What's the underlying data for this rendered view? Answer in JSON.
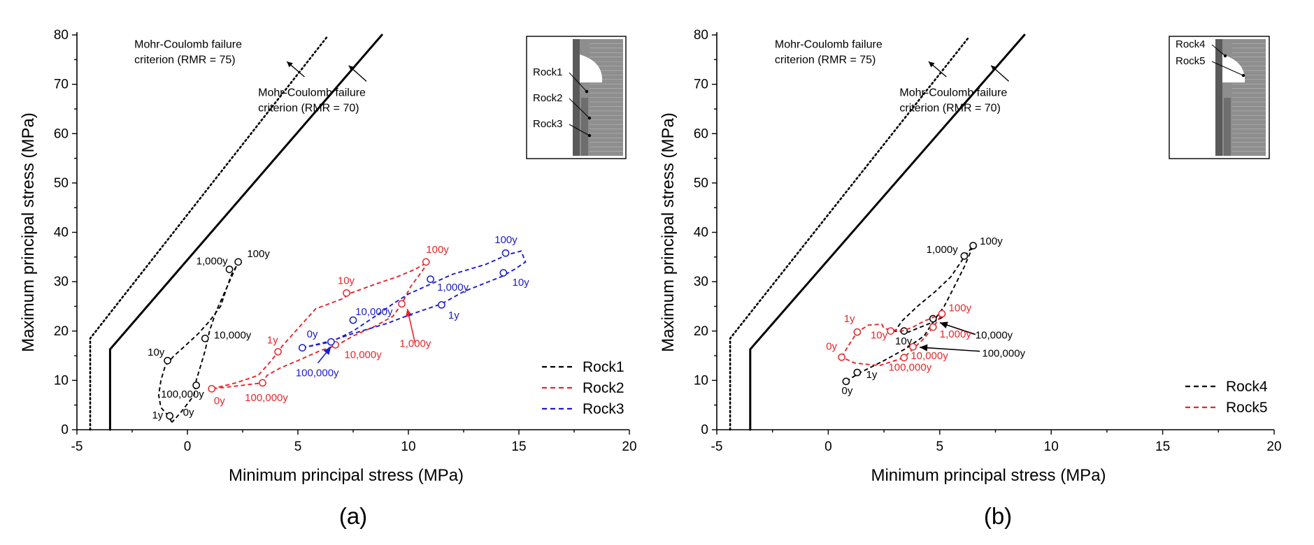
{
  "colors": {
    "Rock1": "#000000",
    "Rock2": "#e8262a",
    "Rock3": "#1c1ccf",
    "Rock4": "#000000",
    "Rock5": "#e8262a"
  },
  "chart_data": [
    {
      "type": "line",
      "panel": "(a)",
      "xlabel": "Minimum principal stress (MPa)",
      "ylabel": "Maximum principal stress (MPa)",
      "xlim": [
        -5,
        20
      ],
      "ylim": [
        0,
        80
      ],
      "xticks": [
        "-5",
        "0",
        "5",
        "10",
        "15",
        "20"
      ],
      "yticks": [
        "0",
        "10",
        "20",
        "30",
        "40",
        "50",
        "60",
        "70",
        "80"
      ],
      "legend_position": "bottom-right",
      "failure_criteria": [
        {
          "label": "Mohr-Coulomb  failure criterion (RMR = 75)",
          "line1": "Mohr-Coulomb  failure",
          "line2": "criterion (RMR = 75)",
          "style": "dotted",
          "points": [
            [
              -4.4,
              0
            ],
            [
              -4.4,
              18.5
            ],
            [
              6.3,
              79.5
            ]
          ]
        },
        {
          "label": "Mohr-Coulomb  failure criterion (RMR = 70)",
          "line1": "Mohr-Coulomb  failure",
          "line2": "criterion (RMR = 70)",
          "style": "solid",
          "points": [
            [
              -3.5,
              0
            ],
            [
              -3.5,
              16.3
            ],
            [
              8.8,
              80
            ]
          ]
        }
      ],
      "series": [
        {
          "name": "Rock1",
          "color": "#000000",
          "path": [
            [
              -0.7,
              1.5
            ],
            [
              -0.9,
              3
            ],
            [
              -1.2,
              4.5
            ],
            [
              -1.3,
              7
            ],
            [
              -1.2,
              10
            ],
            [
              -1.0,
              13
            ],
            [
              -0.6,
              15
            ],
            [
              -0.1,
              17
            ],
            [
              0.5,
              19.5
            ],
            [
              1.0,
              22
            ],
            [
              1.5,
              25
            ],
            [
              1.8,
              29
            ],
            [
              2.0,
              31.5
            ],
            [
              2.2,
              33
            ],
            [
              2.3,
              34
            ],
            [
              2.1,
              32
            ],
            [
              1.7,
              28
            ],
            [
              1.3,
              24
            ],
            [
              1.0,
              20
            ],
            [
              0.8,
              16
            ],
            [
              0.6,
              13
            ],
            [
              0.4,
              10
            ],
            [
              0.3,
              7
            ],
            [
              -0.3,
              3.5
            ],
            [
              -0.7,
              1.5
            ]
          ],
          "markers": [
            [
              -0.8,
              2.8
            ],
            [
              -0.9,
              14
            ],
            [
              0.4,
              9
            ],
            [
              0.8,
              18.5
            ],
            [
              1.9,
              32.5
            ],
            [
              2.3,
              34
            ]
          ],
          "labels": [
            {
              "text": "0y",
              "x": -0.2,
              "y": 2.8
            },
            {
              "text": "1y",
              "x": -1.6,
              "y": 2.3
            },
            {
              "text": "10y",
              "x": -1.8,
              "y": 15
            },
            {
              "text": "100,000y",
              "x": -1.2,
              "y": 6.5
            },
            {
              "text": "10,000y",
              "x": 1.2,
              "y": 18.5
            },
            {
              "text": "1,000y",
              "x": 0.4,
              "y": 33.5
            },
            {
              "text": "100y",
              "x": 2.7,
              "y": 35
            }
          ]
        },
        {
          "name": "Rock2",
          "color": "#e8262a",
          "path": [
            [
              1.1,
              8.3
            ],
            [
              2.2,
              9.5
            ],
            [
              3.2,
              11
            ],
            [
              3.8,
              14
            ],
            [
              4.3,
              17
            ],
            [
              4.8,
              19.5
            ],
            [
              5.3,
              22
            ],
            [
              5.8,
              24.5
            ],
            [
              7.0,
              26.5
            ],
            [
              7.4,
              27.7
            ],
            [
              8.5,
              29.5
            ],
            [
              9.5,
              31
            ],
            [
              10.3,
              32.5
            ],
            [
              10.9,
              34
            ],
            [
              10.6,
              32
            ],
            [
              10.1,
              29
            ],
            [
              9.7,
              25.5
            ],
            [
              9.3,
              23
            ],
            [
              8.5,
              21
            ],
            [
              7.5,
              19
            ],
            [
              6.8,
              17.2
            ],
            [
              6.0,
              16
            ],
            [
              5.0,
              14
            ],
            [
              4.2,
              12.5
            ],
            [
              3.6,
              11
            ],
            [
              3.4,
              9.5
            ],
            [
              2.5,
              9
            ],
            [
              1.1,
              8.3
            ]
          ],
          "markers": [
            [
              1.1,
              8.3
            ],
            [
              3.4,
              9.5
            ],
            [
              4.1,
              15.8
            ],
            [
              6.7,
              17.2
            ],
            [
              7.2,
              27.7
            ],
            [
              9.7,
              25.5
            ],
            [
              10.8,
              34
            ]
          ],
          "labels": [
            {
              "text": "0y",
              "x": 1.2,
              "y": 5.2
            },
            {
              "text": "100,000y",
              "x": 2.6,
              "y": 5.8
            },
            {
              "text": "1y",
              "x": 3.6,
              "y": 17.5
            },
            {
              "text": "10,000y",
              "x": 7.1,
              "y": 14.5
            },
            {
              "text": "10y",
              "x": 6.8,
              "y": 29.5
            },
            {
              "text": "1,000y",
              "x": 9.6,
              "y": 16.8
            },
            {
              "text": "100y",
              "x": 10.8,
              "y": 35.8
            }
          ],
          "arrow": {
            "from": [
              10.3,
              17.6
            ],
            "to": [
              9.95,
              24.5
            ]
          }
        },
        {
          "name": "Rock3",
          "color": "#1c1ccf",
          "path": [
            [
              5.2,
              16.6
            ],
            [
              6.5,
              17.8
            ],
            [
              7.5,
              20
            ],
            [
              8.5,
              23
            ],
            [
              9.3,
              25.5
            ],
            [
              10,
              27.5
            ],
            [
              11,
              29.5
            ],
            [
              12.0,
              31.5
            ],
            [
              13.5,
              33.5
            ],
            [
              14.5,
              35.5
            ],
            [
              15.1,
              36.2
            ],
            [
              15.3,
              34
            ],
            [
              14.8,
              32.5
            ],
            [
              14.2,
              31
            ],
            [
              12.5,
              28
            ],
            [
              11.5,
              25.5
            ],
            [
              10.2,
              23.5
            ],
            [
              9.0,
              21.5
            ],
            [
              7.5,
              19.5
            ],
            [
              6.5,
              18
            ],
            [
              5.2,
              16.6
            ]
          ],
          "markers": [
            [
              5.2,
              16.6
            ],
            [
              6.5,
              17.8
            ],
            [
              7.5,
              22.2
            ],
            [
              11.0,
              30.5
            ],
            [
              11.5,
              25.3
            ],
            [
              14.3,
              31.8
            ],
            [
              14.4,
              35.8
            ]
          ],
          "labels": [
            {
              "text": "0y",
              "x": 5.4,
              "y": 18.7
            },
            {
              "text": "100,000y",
              "x": 4.9,
              "y": 10.8
            },
            {
              "text": "10,000y",
              "x": 7.6,
              "y": 23.2
            },
            {
              "text": "1,000y",
              "x": 11.3,
              "y": 28.2
            },
            {
              "text": "1y",
              "x": 11.8,
              "y": 22.5
            },
            {
              "text": "10y",
              "x": 14.7,
              "y": 29.2
            },
            {
              "text": "100y",
              "x": 13.9,
              "y": 37.8
            }
          ],
          "arrow": {
            "from": [
              5.9,
              13.5
            ],
            "to": [
              6.5,
              16.8
            ]
          }
        }
      ],
      "inset_labels": [
        "Rock1",
        "Rock2",
        "Rock3"
      ]
    },
    {
      "type": "line",
      "panel": "(b)",
      "xlabel": "Minimum principal stress (MPa)",
      "ylabel": "Maximum principal stress (MPa)",
      "xlim": [
        -5,
        20
      ],
      "ylim": [
        0,
        80
      ],
      "xticks": [
        "-5",
        "0",
        "5",
        "10",
        "15",
        "20"
      ],
      "yticks": [
        "0",
        "10",
        "20",
        "30",
        "40",
        "50",
        "60",
        "70",
        "80"
      ],
      "legend_position": "bottom-right",
      "failure_criteria": [
        {
          "label": "Mohr-Coulomb  failure criterion (RMR = 75)",
          "line1": "Mohr-Coulomb  failure",
          "line2": "criterion (RMR = 75)",
          "style": "dotted",
          "points": [
            [
              -4.4,
              0
            ],
            [
              -4.4,
              18.5
            ],
            [
              6.3,
              79.5
            ]
          ]
        },
        {
          "label": "Mohr-Coulomb  failure criterion (RMR = 70)",
          "line1": "Mohr-Coulomb  failure",
          "line2": "criterion (RMR = 70)",
          "style": "solid",
          "points": [
            [
              -3.5,
              0
            ],
            [
              -3.5,
              16.3
            ],
            [
              8.8,
              80
            ]
          ]
        }
      ],
      "series": [
        {
          "name": "Rock4",
          "color": "#000000",
          "path": [
            [
              0.8,
              9.8
            ],
            [
              1.4,
              11.5
            ],
            [
              2.5,
              14
            ],
            [
              3.5,
              16.5
            ],
            [
              4.3,
              19
            ],
            [
              4.8,
              22.5
            ],
            [
              5.2,
              25
            ],
            [
              5.6,
              28.5
            ],
            [
              6.1,
              33
            ],
            [
              6.5,
              37.3
            ],
            [
              6.1,
              35
            ],
            [
              5.5,
              31
            ],
            [
              4.8,
              28
            ],
            [
              4.0,
              25
            ],
            [
              3.3,
              22
            ],
            [
              3.0,
              20
            ],
            [
              3.6,
              19.8
            ],
            [
              4.8,
              22
            ],
            [
              5.2,
              23
            ]
          ],
          "markers": [
            [
              0.8,
              9.8
            ],
            [
              1.3,
              11.6
            ],
            [
              3.4,
              20
            ],
            [
              4.7,
              22.5
            ],
            [
              6.1,
              35.2
            ],
            [
              6.5,
              37.3
            ]
          ],
          "labels": [
            {
              "text": "0y",
              "x": 0.6,
              "y": 7.2
            },
            {
              "text": "1y",
              "x": 1.7,
              "y": 10.5
            },
            {
              "text": "10y",
              "x": 3.0,
              "y": 17.3
            },
            {
              "text": "1,000y",
              "x": 4.4,
              "y": 35.8
            },
            {
              "text": "100y",
              "x": 6.8,
              "y": 37.5
            },
            {
              "text": "10,000y",
              "x": 6.6,
              "y": 18.5
            },
            {
              "text": "100,000y",
              "x": 6.9,
              "y": 14.8
            }
          ],
          "arrows": [
            {
              "from": [
                6.6,
                19.3
              ],
              "to": [
                5.0,
                21.7
              ]
            },
            {
              "from": [
                6.8,
                15.9
              ],
              "to": [
                4.1,
                16.7
              ]
            }
          ]
        },
        {
          "name": "Rock5",
          "color": "#e8262a",
          "path": [
            [
              0.6,
              14.7
            ],
            [
              0.9,
              17
            ],
            [
              1.3,
              19.8
            ],
            [
              1.8,
              21.2
            ],
            [
              2.4,
              21.4
            ],
            [
              2.5,
              20.5
            ],
            [
              2.9,
              20.2
            ],
            [
              3.3,
              20
            ],
            [
              3.8,
              20.8
            ],
            [
              4.3,
              22
            ],
            [
              5.1,
              23.5
            ],
            [
              4.9,
              22
            ],
            [
              4.7,
              20.8
            ],
            [
              4.3,
              18.5
            ],
            [
              3.9,
              16.8
            ],
            [
              3.6,
              15.5
            ],
            [
              3.4,
              14.6
            ],
            [
              2.3,
              13
            ],
            [
              1.2,
              13.5
            ],
            [
              0.6,
              14.7
            ]
          ],
          "markers": [
            [
              0.6,
              14.7
            ],
            [
              1.3,
              19.8
            ],
            [
              2.8,
              20
            ],
            [
              3.4,
              14.6
            ],
            [
              3.8,
              16.8
            ],
            [
              4.7,
              20.8
            ],
            [
              5.1,
              23.5
            ]
          ],
          "labels": [
            {
              "text": "0y",
              "x": -0.1,
              "y": 16.2
            },
            {
              "text": "1y",
              "x": 0.7,
              "y": 21.8
            },
            {
              "text": "10y",
              "x": 1.9,
              "y": 18.5
            },
            {
              "text": "10,000y",
              "x": 3.7,
              "y": 14.3
            },
            {
              "text": "100,000y",
              "x": 2.7,
              "y": 12.0
            },
            {
              "text": "1,000y",
              "x": 5.0,
              "y": 18.7
            },
            {
              "text": "100y",
              "x": 5.4,
              "y": 24.0
            }
          ]
        }
      ],
      "inset_labels": [
        "Rock4",
        "Rock5"
      ]
    }
  ]
}
